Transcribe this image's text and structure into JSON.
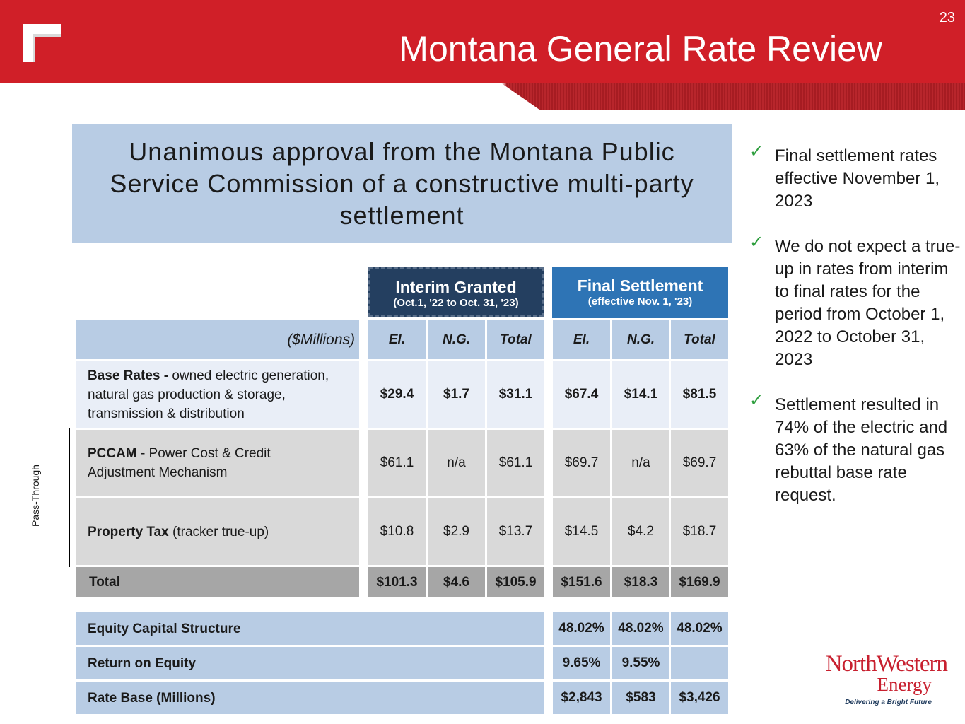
{
  "header": {
    "title": "Montana General Rate Review",
    "page_number": "23"
  },
  "approval": {
    "text": "Unanimous approval from the Montana Public Service Commission of a constructive multi-party settlement"
  },
  "table": {
    "interim": {
      "title": "Interim Granted",
      "subtitle": "(Oct.1, '22 to Oct. 31, '23)"
    },
    "final": {
      "title": "Final Settlement",
      "subtitle": "(effective Nov. 1, '23)"
    },
    "units_label": "($Millions)",
    "columns": [
      "El.",
      "N.G.",
      "Total",
      "El.",
      "N.G.",
      "Total"
    ],
    "base_rates": {
      "label_bold": "Base Rates -",
      "label_rest": " owned electric generation, natural gas production & storage, transmission & distribution",
      "values": [
        "$29.4",
        "$1.7",
        "$31.1",
        "$67.4",
        "$14.1",
        "$81.5"
      ]
    },
    "pccam": {
      "label_bold": "PCCAM",
      "label_rest": " - Power Cost & Credit Adjustment Mechanism",
      "values": [
        "$61.1",
        "n/a",
        "$61.1",
        "$69.7",
        "n/a",
        "$69.7"
      ]
    },
    "property_tax": {
      "label_bold": "Property Tax",
      "label_rest": " (tracker true-up)",
      "values": [
        "$10.8",
        "$2.9",
        "$13.7",
        "$14.5",
        "$4.2",
        "$18.7"
      ]
    },
    "total": {
      "label": "Total",
      "values": [
        "$101.3",
        "$4.6",
        "$105.9",
        "$151.6",
        "$18.3",
        "$169.9"
      ]
    },
    "pass_through_label": "Pass-Through",
    "equity": {
      "label": "Equity Capital Structure",
      "values": [
        "48.02%",
        "48.02%",
        "48.02%"
      ]
    },
    "roe": {
      "label": "Return on Equity",
      "values": [
        "9.65%",
        "9.55%",
        ""
      ]
    },
    "rate_base": {
      "label": "Rate Base (Millions)",
      "values": [
        "$2,843",
        "$583",
        "$3,426"
      ]
    }
  },
  "bullets": [
    "Final settlement rates effective November 1, 2023",
    "We do not expect a true-up in rates from interim to final rates for the period from October 1, 2022 to October 31, 2023",
    "Settlement resulted in 74% of the electric and 63% of the natural gas rebuttal base rate request."
  ],
  "logo": {
    "name": "NorthWestern",
    "energy": "Energy",
    "tagline": "Delivering a Bright Future"
  },
  "colors": {
    "brand_red": "#d01f28",
    "light_blue": "#b8cce4",
    "navy": "#243f60",
    "blue": "#2e74b5",
    "check_green": "#2e9e3e"
  }
}
